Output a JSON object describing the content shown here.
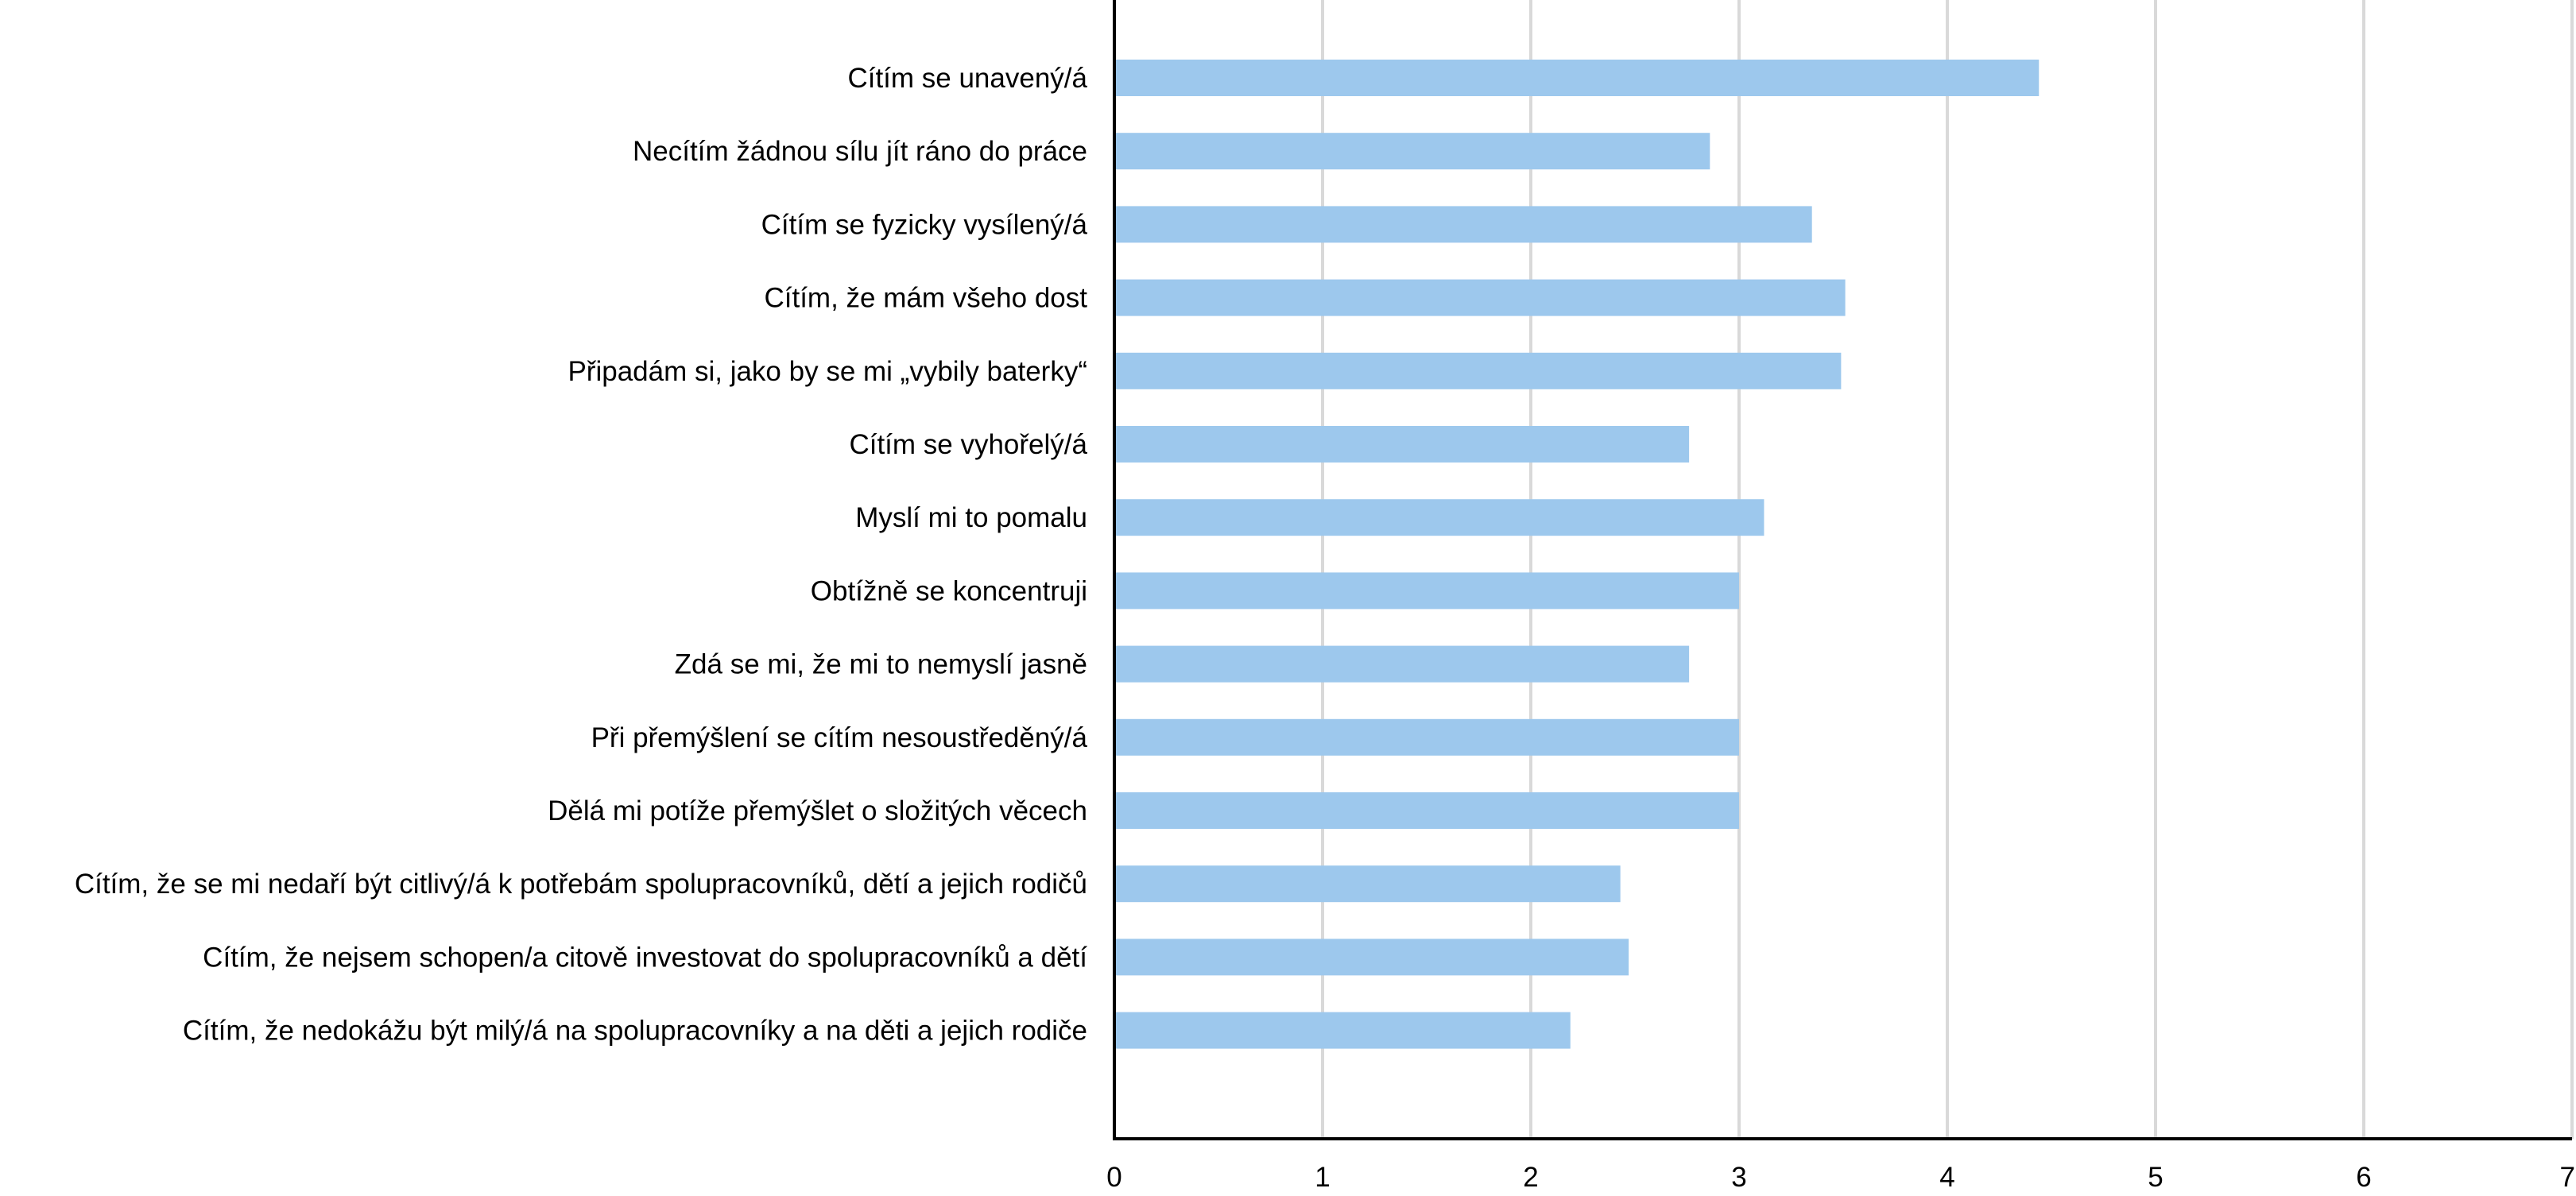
{
  "chart_data": {
    "type": "bar",
    "orientation": "horizontal",
    "categories": [
      "Cítím se unavený/á",
      "Necítím žádnou sílu jít ráno do práce",
      "Cítím se fyzicky vysílený/á",
      "Cítím, že mám všeho dost",
      "Připadám si, jako by se mi „vybily baterky“",
      "Cítím se vyhořelý/á",
      "Myslí mi to pomalu",
      "Obtížně se koncentruji",
      "Zdá se mi, že mi to nemyslí jasně",
      "Při přemýšlení se cítím nesoustředěný/á",
      "Dělá mi potíže přemýšlet o složitých věcech",
      "Cítím, že se mi nedaří být citlivý/á k potřebám spolupracovníků, dětí a jejich rodičů",
      "Cítím, že nejsem schopen/a citově investovat do spolupracovníků a dětí",
      "Cítím, že nedokážu být milý/á na spolupracovníky a na děti a jejich rodiče"
    ],
    "values": [
      4.44,
      2.86,
      3.35,
      3.51,
      3.49,
      2.76,
      3.12,
      3.0,
      2.76,
      3.0,
      3.0,
      2.43,
      2.47,
      2.19
    ],
    "xlim": [
      0,
      7
    ],
    "xticks": [
      "0",
      "1",
      "2",
      "3",
      "4",
      "5",
      "6",
      "7"
    ],
    "grid": true,
    "bar_color": "#9dc8ed",
    "title": "",
    "xlabel": "",
    "ylabel": ""
  }
}
